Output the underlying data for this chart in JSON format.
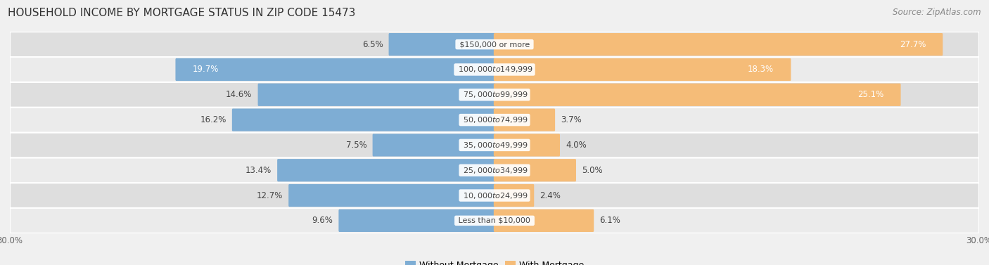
{
  "title": "HOUSEHOLD INCOME BY MORTGAGE STATUS IN ZIP CODE 15473",
  "source": "Source: ZipAtlas.com",
  "categories": [
    "Less than $10,000",
    "$10,000 to $24,999",
    "$25,000 to $34,999",
    "$35,000 to $49,999",
    "$50,000 to $74,999",
    "$75,000 to $99,999",
    "$100,000 to $149,999",
    "$150,000 or more"
  ],
  "without_mortgage": [
    9.6,
    12.7,
    13.4,
    7.5,
    16.2,
    14.6,
    19.7,
    6.5
  ],
  "with_mortgage": [
    6.1,
    2.4,
    5.0,
    4.0,
    3.7,
    25.1,
    18.3,
    27.7
  ],
  "without_mortgage_color": "#7eadd4",
  "with_mortgage_color": "#f5bc78",
  "xlim": 30.0,
  "title_fontsize": 11,
  "source_fontsize": 8.5,
  "label_fontsize": 8.5,
  "category_fontsize": 8,
  "legend_fontsize": 9,
  "axis_label_fontsize": 8.5
}
